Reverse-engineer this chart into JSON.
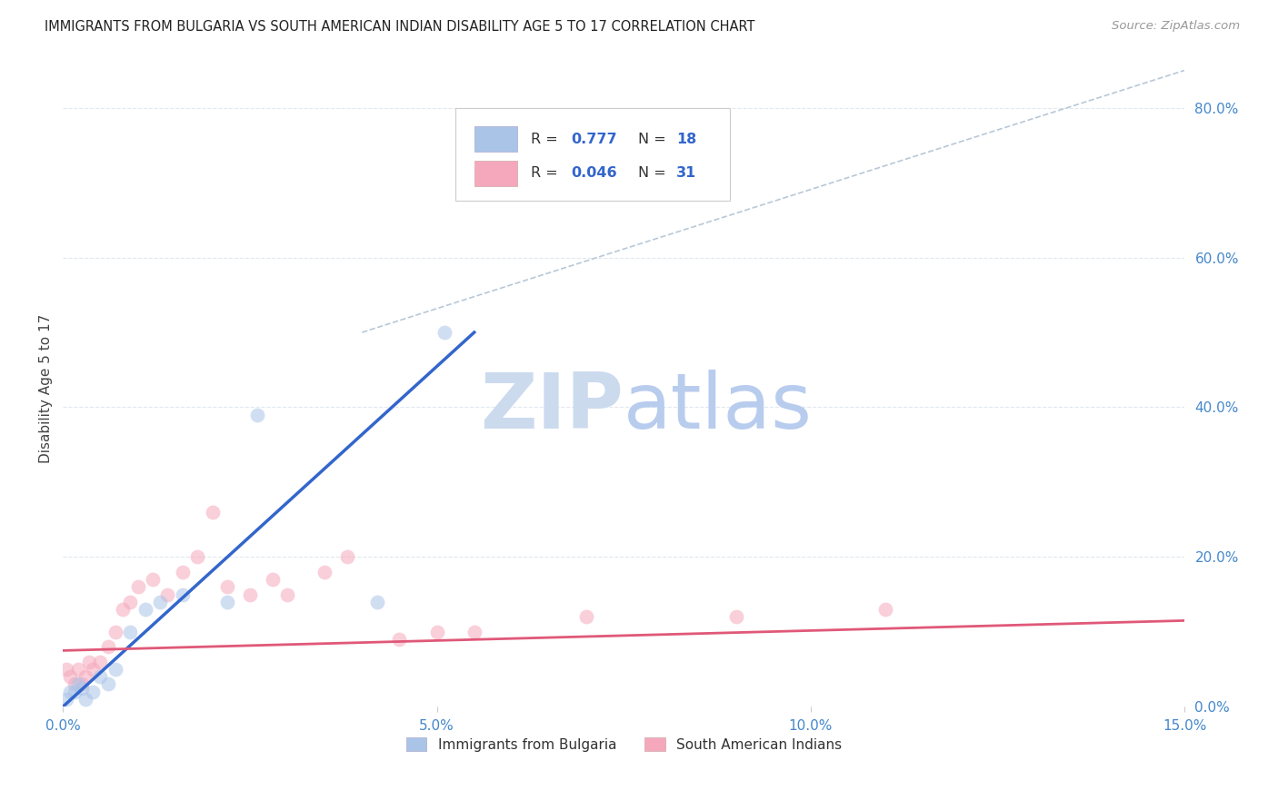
{
  "title": "IMMIGRANTS FROM BULGARIA VS SOUTH AMERICAN INDIAN DISABILITY AGE 5 TO 17 CORRELATION CHART",
  "source": "Source: ZipAtlas.com",
  "ylabel": "Disability Age 5 to 17",
  "xlim": [
    0.0,
    0.15
  ],
  "ylim": [
    0.0,
    0.85
  ],
  "x_ticks": [
    0.0,
    0.05,
    0.1,
    0.15
  ],
  "x_tick_labels": [
    "0.0%",
    "5.0%",
    "10.0%",
    "15.0%"
  ],
  "y_ticks_right": [
    0.0,
    0.2,
    0.4,
    0.6,
    0.8
  ],
  "y_tick_labels_right": [
    "0.0%",
    "20.0%",
    "40.0%",
    "60.0%",
    "80.0%"
  ],
  "bulgaria_R": "0.777",
  "bulgaria_N": "18",
  "southam_R": "0.046",
  "southam_N": "31",
  "bulgaria_color": "#aac4e8",
  "southam_color": "#f5a8bc",
  "bulgaria_line_color": "#3366cc",
  "southam_line_color": "#e05878",
  "ref_line_color": "#b8c8d8",
  "grid_color": "#e0e8f0",
  "watermark_color": "#ccd8ee",
  "scatter_alpha": 0.55,
  "marker_size": 130,
  "bulgaria_scatter_x": [
    0.0005,
    0.001,
    0.0015,
    0.002,
    0.0025,
    0.003,
    0.004,
    0.005,
    0.006,
    0.007,
    0.009,
    0.011,
    0.013,
    0.016,
    0.022,
    0.026,
    0.042,
    0.051
  ],
  "bulgaria_scatter_y": [
    0.01,
    0.02,
    0.02,
    0.03,
    0.025,
    0.01,
    0.02,
    0.04,
    0.03,
    0.05,
    0.1,
    0.13,
    0.14,
    0.15,
    0.14,
    0.39,
    0.14,
    0.5
  ],
  "southam_scatter_x": [
    0.0005,
    0.001,
    0.0015,
    0.002,
    0.0025,
    0.003,
    0.0035,
    0.004,
    0.005,
    0.006,
    0.007,
    0.008,
    0.009,
    0.01,
    0.012,
    0.014,
    0.016,
    0.018,
    0.02,
    0.022,
    0.025,
    0.028,
    0.03,
    0.035,
    0.038,
    0.045,
    0.05,
    0.055,
    0.07,
    0.09,
    0.11
  ],
  "southam_scatter_y": [
    0.05,
    0.04,
    0.03,
    0.05,
    0.03,
    0.04,
    0.06,
    0.05,
    0.06,
    0.08,
    0.1,
    0.13,
    0.14,
    0.16,
    0.17,
    0.15,
    0.18,
    0.2,
    0.26,
    0.16,
    0.15,
    0.17,
    0.15,
    0.18,
    0.2,
    0.09,
    0.1,
    0.1,
    0.12,
    0.12,
    0.13
  ],
  "bulgaria_line_x": [
    0.0,
    0.055
  ],
  "bulgaria_line_y": [
    0.0,
    0.5
  ],
  "southam_line_x": [
    0.0,
    0.15
  ],
  "southam_line_y": [
    0.075,
    0.115
  ],
  "ref_line_x": [
    0.04,
    0.15
  ],
  "ref_line_y": [
    0.5,
    0.85
  ]
}
